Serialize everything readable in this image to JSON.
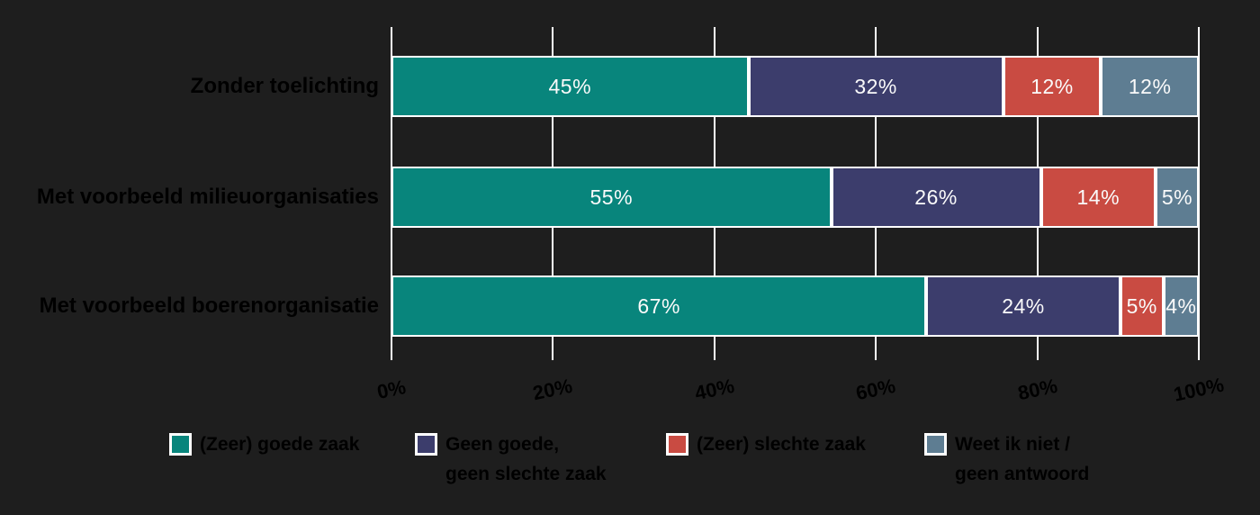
{
  "chart_data": {
    "type": "bar",
    "orientation": "horizontal-stacked",
    "title": "",
    "xlabel": "",
    "ylabel": "",
    "xlim": [
      0,
      100
    ],
    "x_tick_labels": [
      "0%",
      "20%",
      "40%",
      "60%",
      "80%",
      "100%"
    ],
    "grid": "vertical-white-gridlines",
    "legend_position": "bottom",
    "value_suffix": "%",
    "categories": [
      "Zonder toelichting",
      "Met voorbeeld milieuorganisaties",
      "Met voorbeeld boerenorganisatie"
    ],
    "series": [
      {
        "name": "(Zeer) goede zaak",
        "color": "#08857C",
        "values": [
          45,
          55,
          67
        ]
      },
      {
        "name": "Geen goede, geen slechte zaak",
        "color": "#3C3D6C",
        "values": [
          32,
          26,
          24
        ]
      },
      {
        "name": "(Zeer) slechte zaak",
        "color": "#C94B42",
        "values": [
          12,
          14,
          5
        ]
      },
      {
        "name": "Weet ik niet / geen antwoord",
        "color": "#5E7D92",
        "values": [
          12,
          5,
          4
        ]
      }
    ],
    "legend": [
      {
        "label_lines": [
          "(Zeer) goede zaak"
        ],
        "color": "#08857C"
      },
      {
        "label_lines": [
          "Geen goede,",
          "geen slechte zaak"
        ],
        "color": "#3C3D6C"
      },
      {
        "label_lines": [
          "(Zeer) slechte zaak"
        ],
        "color": "#C94B42"
      },
      {
        "label_lines": [
          "Weet ik niet /",
          "geen antwoord"
        ],
        "color": "#5E7D92"
      }
    ]
  },
  "theme": {
    "background": "#1E1E1E",
    "axis_text": "#000000",
    "category_text": "#000000",
    "bar_value_text": "#FAFAFA",
    "gridline": "#FFFFFF",
    "segment_border": "#FFFFFF"
  }
}
